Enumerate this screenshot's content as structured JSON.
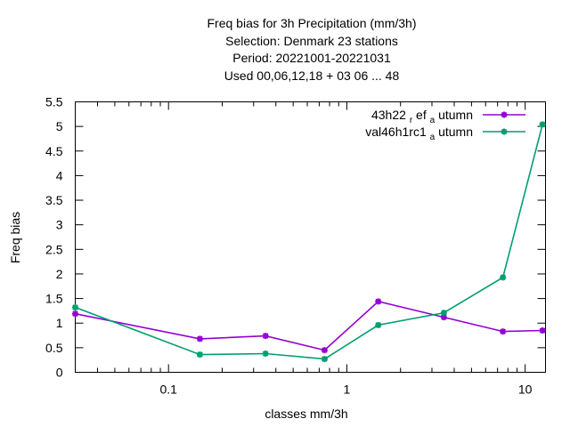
{
  "chart_data": {
    "type": "line",
    "title_lines": [
      "Freq bias  for 3h Precipitation (mm/3h)",
      "Selection: Denmark      23 stations",
      "Period: 20221001-20221031",
      "Used  00,06,12,18  + 03 06 ... 48"
    ],
    "xlabel": "classes mm/3h",
    "ylabel": "Freq bias",
    "xscale": "log",
    "xlim": [
      0.03,
      13
    ],
    "ylim": [
      0,
      5.5
    ],
    "xticks": [
      0.1,
      1,
      10
    ],
    "xtick_labels": [
      "0.1",
      "1",
      "10"
    ],
    "yticks": [
      0,
      0.5,
      1,
      1.5,
      2,
      2.5,
      3,
      3.5,
      4,
      4.5,
      5,
      5.5
    ],
    "ytick_labels": [
      "0",
      "0.5",
      "1",
      "1.5",
      "2",
      "2.5",
      "3",
      "3.5",
      "4",
      "4.5",
      "5",
      "5.5"
    ],
    "x": [
      0.03,
      0.15,
      0.35,
      0.75,
      1.5,
      3.5,
      7.5,
      12.5
    ],
    "series": [
      {
        "name": "43h22_ref_autumn",
        "legend_main": "43h22",
        "legend_sub1": "ref",
        "legend_mid": "ef",
        "legend_sub2": "a",
        "legend_tail": "utumn",
        "color": "#9400d3",
        "values": [
          1.19,
          0.68,
          0.74,
          0.45,
          1.44,
          1.12,
          0.83,
          0.85
        ]
      },
      {
        "name": "val46h1rc1_autumn",
        "legend_main": "val46h1rc1",
        "legend_sub2": "a",
        "legend_tail": "utumn",
        "color": "#009e73",
        "values": [
          1.32,
          0.36,
          0.38,
          0.27,
          0.96,
          1.21,
          1.93,
          5.04
        ]
      }
    ],
    "legend_position": "top-right",
    "grid": false
  }
}
